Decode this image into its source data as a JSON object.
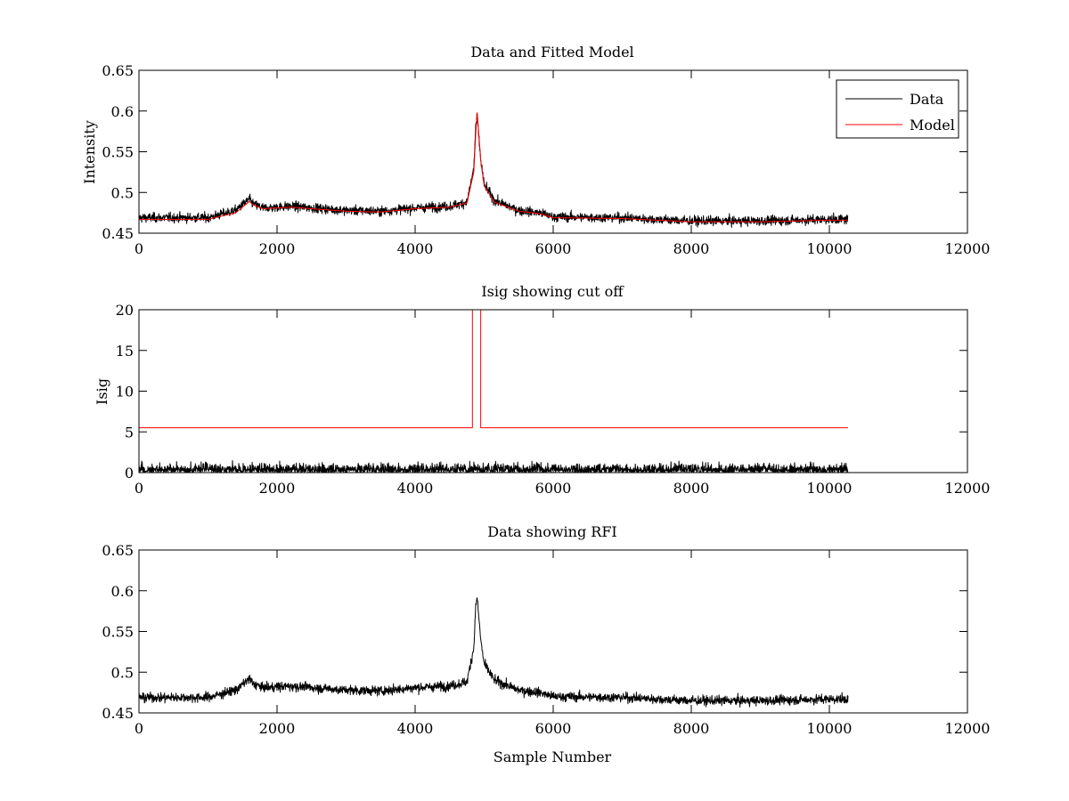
{
  "chart_data": [
    {
      "type": "line",
      "title": "Data and Fitted Model",
      "xlabel": "",
      "ylabel": "Intensity",
      "xlim": [
        0,
        12000
      ],
      "ylim": [
        0.45,
        0.65
      ],
      "xticks": [
        0,
        2000,
        4000,
        6000,
        8000,
        10000,
        12000
      ],
      "yticks": [
        0.45,
        0.5,
        0.55,
        0.6,
        0.65
      ],
      "ytick_labels": [
        "0.45",
        "0.5",
        "0.55",
        "0.6",
        "0.65"
      ],
      "grid": false,
      "legend": "top-right",
      "series": [
        {
          "name": "Data",
          "color": "#000000",
          "style": "noisy",
          "noise": 0.006,
          "x": [
            0,
            1000,
            1400,
            1600,
            1650,
            1800,
            2200,
            3000,
            3500,
            4000,
            4500,
            4750,
            4850,
            4880,
            4900,
            4950,
            5000,
            5150,
            5500,
            5800,
            6000,
            7000,
            8000,
            9000,
            10000,
            10270
          ],
          "y": [
            0.469,
            0.469,
            0.478,
            0.492,
            0.486,
            0.481,
            0.483,
            0.478,
            0.477,
            0.481,
            0.483,
            0.488,
            0.53,
            0.585,
            0.59,
            0.54,
            0.51,
            0.49,
            0.478,
            0.475,
            0.47,
            0.469,
            0.465,
            0.465,
            0.467,
            0.467
          ]
        },
        {
          "name": "Model",
          "color": "#ff0000",
          "style": "smooth",
          "x": [
            0,
            1000,
            1400,
            1600,
            1650,
            1800,
            2200,
            3000,
            3500,
            4000,
            4500,
            4750,
            4850,
            4880,
            4900,
            4950,
            5000,
            5150,
            5500,
            5800,
            6000,
            7000,
            8000,
            9000,
            10000,
            10270
          ],
          "y": [
            0.467,
            0.467,
            0.475,
            0.489,
            0.485,
            0.48,
            0.482,
            0.477,
            0.476,
            0.48,
            0.482,
            0.487,
            0.525,
            0.575,
            0.598,
            0.54,
            0.508,
            0.488,
            0.477,
            0.474,
            0.469,
            0.468,
            0.464,
            0.464,
            0.466,
            0.466
          ]
        }
      ]
    },
    {
      "type": "line",
      "title": "Isig showing cut off",
      "xlabel": "",
      "ylabel": "Isig",
      "xlim": [
        0,
        12000
      ],
      "ylim": [
        0,
        20
      ],
      "xticks": [
        0,
        2000,
        4000,
        6000,
        8000,
        10000,
        12000
      ],
      "yticks": [
        0,
        5,
        10,
        15,
        20
      ],
      "ytick_labels": [
        "0",
        "5",
        "10",
        "15",
        "20"
      ],
      "grid": false,
      "series": [
        {
          "name": "",
          "color": "#000000",
          "style": "noisy-abs",
          "noise": 1.1,
          "x": [
            0,
            10270
          ],
          "y": [
            0,
            0
          ]
        },
        {
          "name": "",
          "color": "#ff0000",
          "style": "step",
          "x": [
            0,
            4830,
            4830,
            4950,
            4950,
            10270
          ],
          "y": [
            5.5,
            5.5,
            20,
            20,
            5.5,
            5.5
          ]
        }
      ]
    },
    {
      "type": "line",
      "title": "Data showing RFI",
      "xlabel": "Sample Number",
      "ylabel": "",
      "xlim": [
        0,
        12000
      ],
      "ylim": [
        0.45,
        0.65
      ],
      "xticks": [
        0,
        2000,
        4000,
        6000,
        8000,
        10000,
        12000
      ],
      "yticks": [
        0.45,
        0.5,
        0.55,
        0.6,
        0.65
      ],
      "ytick_labels": [
        "0.45",
        "0.5",
        "0.55",
        "0.6",
        "0.65"
      ],
      "grid": false,
      "series": [
        {
          "name": "",
          "color": "#000000",
          "style": "noisy",
          "noise": 0.006,
          "x": [
            0,
            1000,
            1400,
            1600,
            1650,
            1800,
            2200,
            3000,
            3500,
            4000,
            4500,
            4750,
            4850,
            4880,
            4900,
            4950,
            5000,
            5150,
            5500,
            5800,
            6000,
            7000,
            8000,
            9000,
            10000,
            10270
          ],
          "y": [
            0.469,
            0.469,
            0.478,
            0.492,
            0.486,
            0.481,
            0.483,
            0.478,
            0.477,
            0.481,
            0.483,
            0.488,
            0.53,
            0.585,
            0.59,
            0.54,
            0.51,
            0.49,
            0.478,
            0.475,
            0.47,
            0.469,
            0.465,
            0.465,
            0.467,
            0.467
          ]
        }
      ]
    }
  ]
}
